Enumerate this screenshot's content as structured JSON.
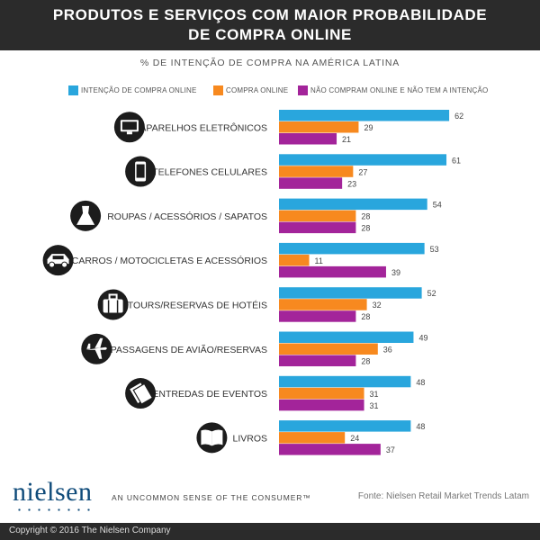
{
  "colors": {
    "intencao": "#29a6dd",
    "compra": "#f7891f",
    "nao_compram": "#a3249a",
    "header_bg": "#2b2b2b",
    "icon_bg": "#1c1c1c"
  },
  "chart_data": {
    "type": "bar",
    "orientation": "horizontal",
    "title": "PRODUTOS E SERVIÇOS COM MAIOR PROBABILIDADE DE COMPRA ONLINE",
    "subtitle": "% DE INTENÇÃO DE COMPRA NA AMÉRICA LATINA",
    "legend_position": "top",
    "grid": false,
    "xlim": [
      0,
      70
    ],
    "categories": [
      "APARELHOS ELETRÔNICOS",
      "TELEFONES CELULARES",
      "ROUPAS / ACESSÓRIOS / SAPATOS",
      "CARROS / MOTOCICLETAS E ACESSÓRIOS",
      "TOURS/RESERVAS DE HOTÉIS",
      "PASSAGENS DE AVIÃO/RESERVAS",
      "ENTREDAS DE EVENTOS",
      "LIVROS"
    ],
    "category_icons": [
      "monitor-icon",
      "smartphone-icon",
      "dress-icon",
      "car-icon",
      "luggage-icon",
      "airplane-icon",
      "ticket-icon",
      "book-icon"
    ],
    "series": [
      {
        "name": "INTENÇÃO DE COMPRA ONLINE",
        "values": [
          62,
          61,
          54,
          53,
          52,
          49,
          48,
          48
        ]
      },
      {
        "name": "COMPRA ONLINE",
        "values": [
          29,
          27,
          28,
          11,
          32,
          36,
          31,
          24
        ]
      },
      {
        "name": "NÃO COMPRAM ONLINE E NÃO TEM A INTENÇÃO",
        "values": [
          21,
          23,
          28,
          39,
          28,
          28,
          31,
          37
        ]
      }
    ]
  },
  "footer": {
    "logo": "nielsen",
    "tagline": "AN UNCOMMON SENSE OF THE CONSUMER™",
    "source": "Fonte: Nielsen Retail Market Trends Latam",
    "copyright": "Copyright © 2016 The Nielsen Company"
  }
}
